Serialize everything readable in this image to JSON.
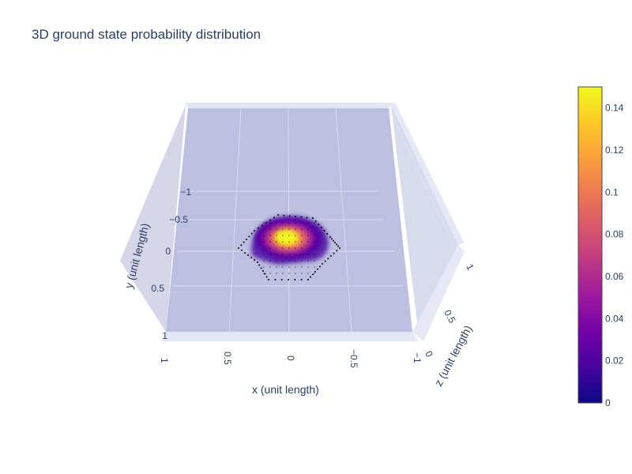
{
  "chart_data": {
    "type": "volume-3d",
    "title": "3D ground state probability distribution",
    "x_axis": {
      "label": "x (unit length)",
      "ticks": [
        "1",
        "0.5",
        "0",
        "−0.5",
        "−1"
      ]
    },
    "y_axis": {
      "label": "y (unit length)",
      "ticks": [
        "−1",
        "−0.5",
        "0",
        "0.5",
        "1"
      ]
    },
    "z_axis": {
      "label": "z (unit length)",
      "ticks": [
        "1",
        "0.5",
        "0"
      ]
    },
    "colorbar": {
      "range": [
        0,
        0.15
      ],
      "ticks": [
        "0.14",
        "0.12",
        "0.1",
        "0.08",
        "0.06",
        "0.04",
        "0.02",
        "0"
      ],
      "tick_values": [
        0.14,
        0.12,
        0.1,
        0.08,
        0.06,
        0.04,
        0.02,
        0
      ],
      "colorscale": [
        "#0d0887",
        "#46039f",
        "#7201a8",
        "#9c179e",
        "#bd3786",
        "#d8576b",
        "#ed7953",
        "#fb9f3a",
        "#fdca26",
        "#f0f921"
      ]
    },
    "peak_value": 0.15,
    "grid": true,
    "scene_background": "#c8cbe6"
  }
}
